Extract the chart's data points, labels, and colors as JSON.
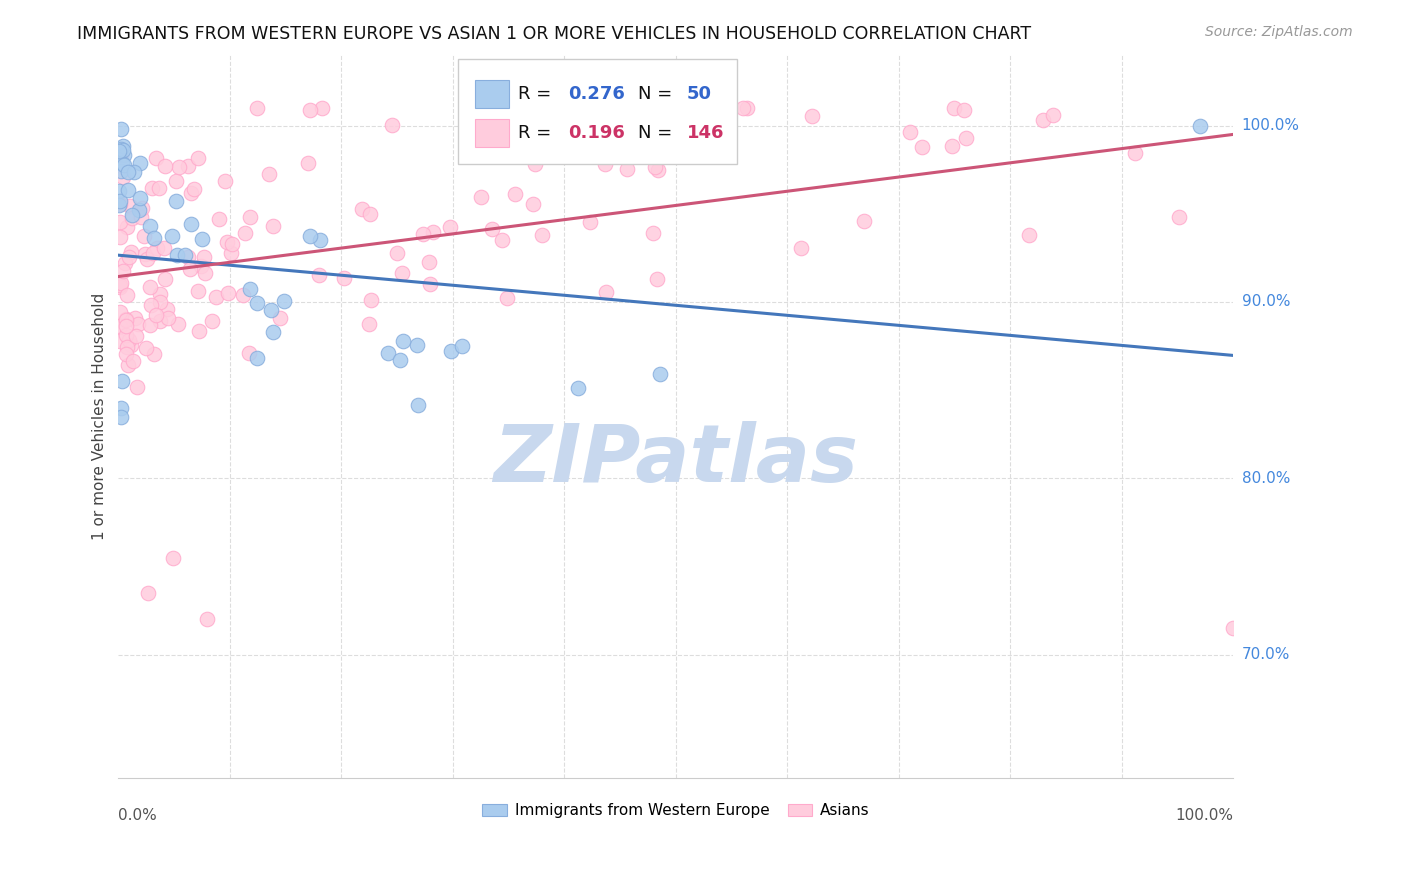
{
  "title": "IMMIGRANTS FROM WESTERN EUROPE VS ASIAN 1 OR MORE VEHICLES IN HOUSEHOLD CORRELATION CHART",
  "source": "Source: ZipAtlas.com",
  "legend_label_blue": "Immigrants from Western Europe",
  "legend_label_pink": "Asians",
  "R_blue": 0.276,
  "N_blue": 50,
  "R_pink": 0.196,
  "N_pink": 146,
  "blue_color": "#88AEDD",
  "pink_color": "#FFAACC",
  "blue_fill": "#AACCEE",
  "pink_fill": "#FFCCDD",
  "trend_blue": "#4477BB",
  "trend_pink": "#CC5577",
  "watermark_color": "#C8D8EE",
  "grid_color": "#DDDDDD",
  "ylim_min": 0.63,
  "ylim_max": 1.04,
  "xlim_min": 0.0,
  "xlim_max": 1.0,
  "y_tick_vals": [
    0.7,
    0.8,
    0.9,
    1.0
  ],
  "y_tick_labels": [
    "70.0%",
    "80.0%",
    "90.0%",
    "100.0%"
  ],
  "x_tick_vals": [
    0.0,
    0.1,
    0.2,
    0.3,
    0.4,
    0.5,
    0.6,
    0.7,
    0.8,
    0.9,
    1.0
  ],
  "ylabel": "1 or more Vehicles in Household"
}
